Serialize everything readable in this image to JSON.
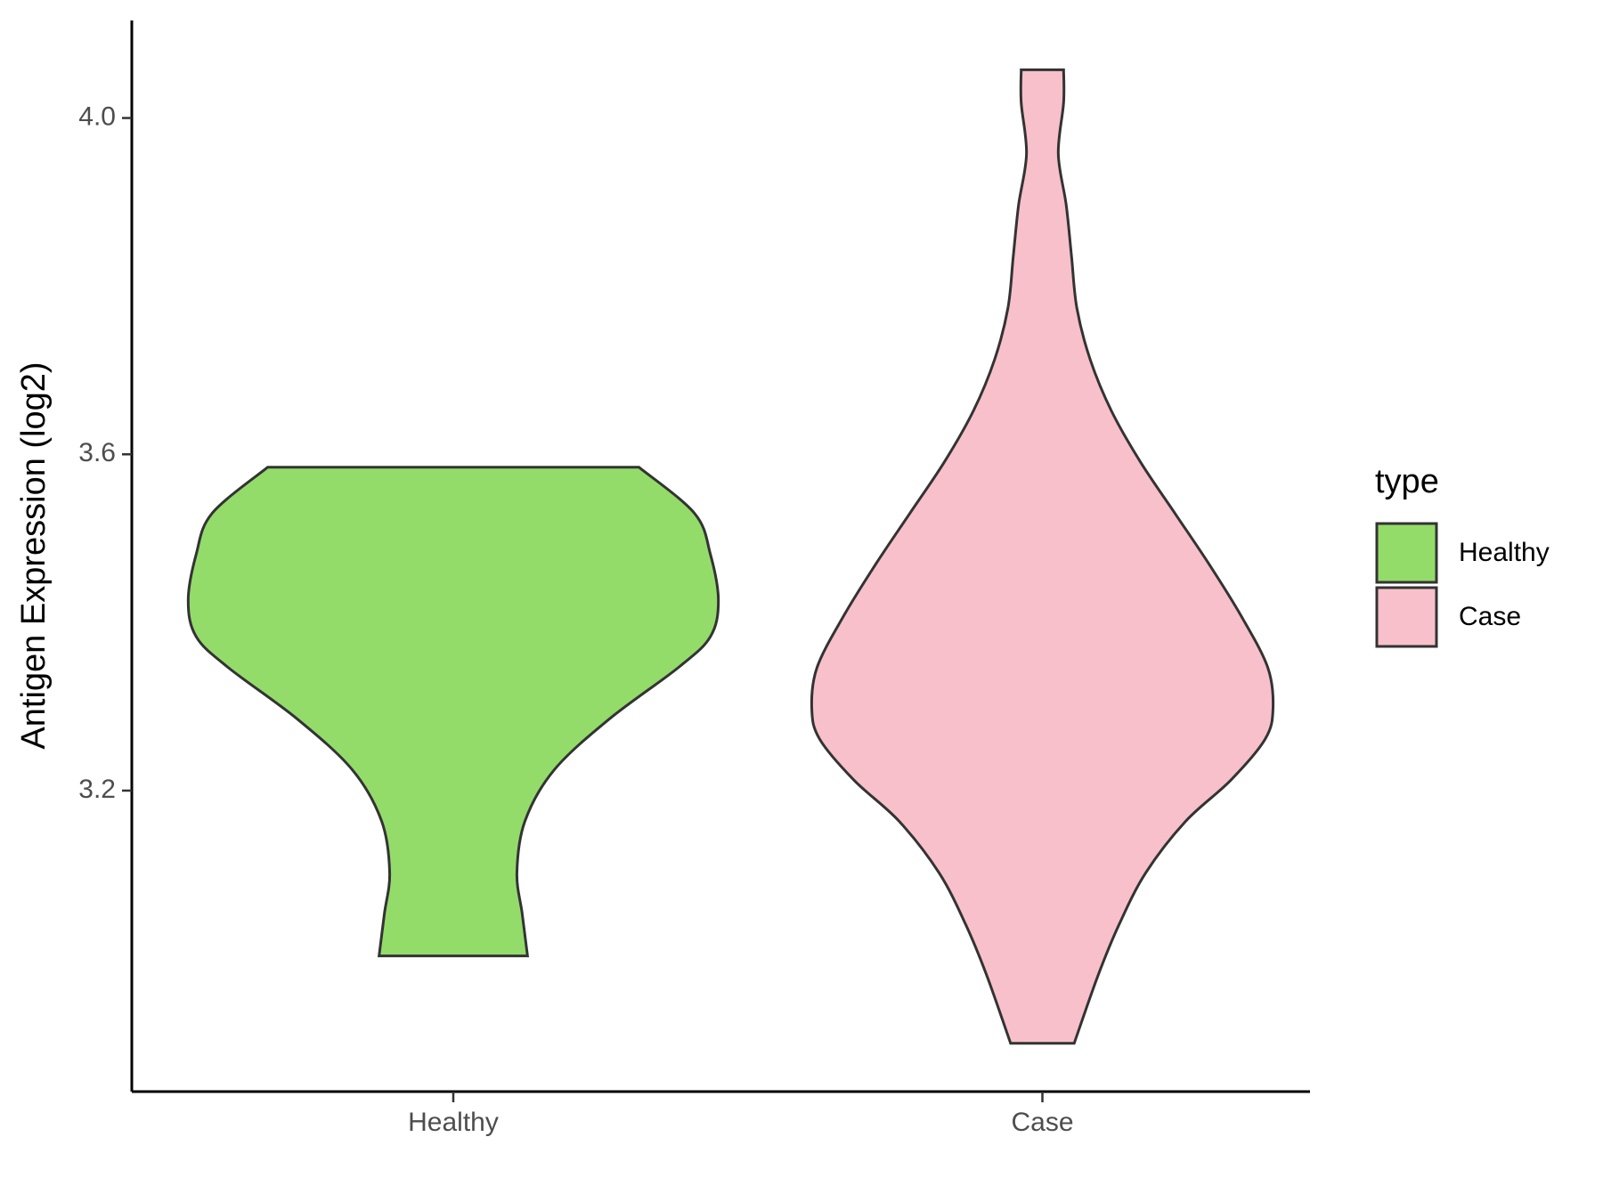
{
  "chart_data": {
    "type": "violin",
    "y_label": "Antigen Expression (log2)",
    "categories": [
      "Healthy",
      "Case"
    ],
    "legend_title": "type",
    "ylim": [
      2.842,
      4.116
    ],
    "yticks": [
      3.2,
      3.6,
      {
        "value": 4,
        "label": "4.0"
      }
    ],
    "series": [
      {
        "name": "Healthy",
        "color": "#93DC6A",
        "y": [
          3.5847,
          3.5298,
          3.4809,
          3.426,
          3.3832,
          3.3466,
          3.2855,
          3.2244,
          3.1634,
          3.1023,
          3.0534,
          3.0034
        ],
        "density": [
          0.7,
          0.91,
          0.97,
          1.0,
          0.97,
          0.85,
          0.59,
          0.38,
          0.27,
          0.24,
          0.26,
          0.28
        ]
      },
      {
        "name": "Case",
        "color": "#F8C0CB",
        "y": [
          4.0574,
          4.0183,
          3.9573,
          3.8962,
          3.8351,
          3.774,
          3.713,
          3.6519,
          3.5908,
          3.5298,
          3.4687,
          3.4076,
          3.3466,
          3.2977,
          3.2611,
          3.2122,
          3.1634,
          3.1023,
          3.0412,
          2.9802,
          2.8995
        ],
        "density": [
          0.08,
          0.08,
          0.06,
          0.09,
          0.11,
          0.13,
          0.18,
          0.26,
          0.37,
          0.5,
          0.63,
          0.75,
          0.85,
          0.87,
          0.84,
          0.71,
          0.54,
          0.39,
          0.29,
          0.21,
          0.12
        ]
      }
    ]
  }
}
